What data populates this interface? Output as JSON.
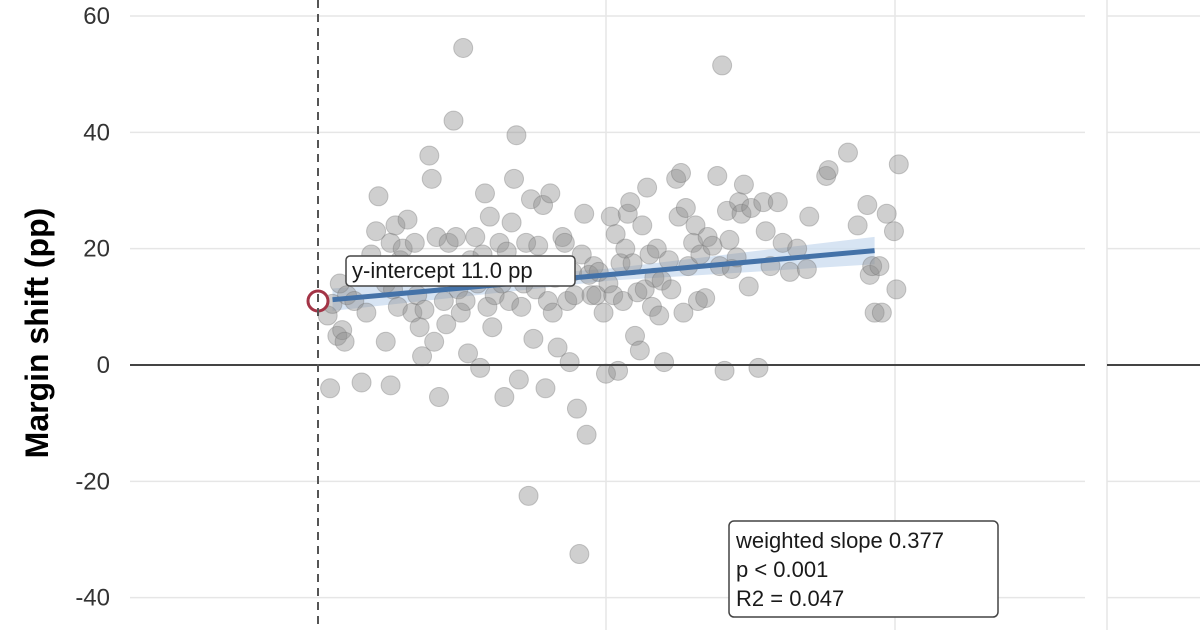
{
  "chart_data": {
    "type": "scatter",
    "ylabel": "Margin shift (pp)",
    "ylim": [
      -44,
      64
    ],
    "xlim": [
      -1,
      25
    ],
    "yticks": [
      60,
      40,
      20,
      0,
      -20,
      -40
    ],
    "grid": true,
    "intercept_annotation": "y-intercept 11.0 pp",
    "stats_annotation": [
      "weighted slope 0.377",
      "p < 0.001",
      "R2 = 0.047"
    ],
    "fit": {
      "intercept": 11.0,
      "slope": 0.377,
      "x_start": 0.6,
      "x_end": 23.0
    },
    "intercept_point": {
      "x": 0,
      "y": 11.0
    },
    "colors": {
      "points": "#8c8c8c",
      "fit_line": "#4472a8",
      "fit_band": "#c9dbef",
      "intercept_marker": "#a33446",
      "zero_line": "#444444",
      "grid": "#e6e6e6"
    },
    "points": [
      [
        0.4,
        8.5
      ],
      [
        0.6,
        10.5
      ],
      [
        0.8,
        5
      ],
      [
        0.9,
        14
      ],
      [
        1.0,
        6
      ],
      [
        1.1,
        4
      ],
      [
        1.2,
        12
      ],
      [
        1.5,
        11
      ],
      [
        1.8,
        -3
      ],
      [
        0.5,
        -4
      ],
      [
        2.0,
        9
      ],
      [
        2.2,
        19
      ],
      [
        2.4,
        23
      ],
      [
        2.5,
        29
      ],
      [
        2.6,
        17
      ],
      [
        2.8,
        14
      ],
      [
        2.8,
        4
      ],
      [
        3.0,
        21
      ],
      [
        3.0,
        -3.5
      ],
      [
        3.1,
        13
      ],
      [
        3.2,
        24
      ],
      [
        3.3,
        10
      ],
      [
        3.4,
        18
      ],
      [
        3.5,
        20
      ],
      [
        3.7,
        25
      ],
      [
        3.8,
        16
      ],
      [
        3.9,
        9
      ],
      [
        4.0,
        21
      ],
      [
        4.1,
        12
      ],
      [
        4.2,
        6.5
      ],
      [
        4.3,
        1.5
      ],
      [
        4.4,
        9.5
      ],
      [
        4.5,
        16
      ],
      [
        4.6,
        36
      ],
      [
        4.7,
        32
      ],
      [
        4.8,
        4
      ],
      [
        4.9,
        22
      ],
      [
        5.0,
        -5.5
      ],
      [
        5.1,
        15
      ],
      [
        5.2,
        11
      ],
      [
        5.3,
        7
      ],
      [
        5.4,
        21
      ],
      [
        5.5,
        17
      ],
      [
        5.6,
        42
      ],
      [
        5.7,
        22
      ],
      [
        5.8,
        13
      ],
      [
        5.9,
        9
      ],
      [
        6.0,
        54.5
      ],
      [
        6.1,
        11
      ],
      [
        6.2,
        2
      ],
      [
        6.3,
        18
      ],
      [
        6.4,
        16
      ],
      [
        6.5,
        22
      ],
      [
        6.6,
        14
      ],
      [
        6.7,
        -0.5
      ],
      [
        6.8,
        19
      ],
      [
        6.9,
        29.5
      ],
      [
        7.0,
        10
      ],
      [
        7.1,
        25.5
      ],
      [
        7.2,
        6.5
      ],
      [
        7.3,
        12
      ],
      [
        7.4,
        17
      ],
      [
        7.5,
        21
      ],
      [
        7.6,
        14
      ],
      [
        7.7,
        -5.5
      ],
      [
        7.8,
        19.5
      ],
      [
        7.9,
        11
      ],
      [
        8.0,
        24.5
      ],
      [
        8.1,
        32
      ],
      [
        8.2,
        39.5
      ],
      [
        8.3,
        -2.5
      ],
      [
        8.4,
        10
      ],
      [
        8.5,
        14
      ],
      [
        8.6,
        21
      ],
      [
        8.7,
        -22.5
      ],
      [
        8.8,
        28.5
      ],
      [
        8.9,
        4.5
      ],
      [
        9.0,
        13
      ],
      [
        9.1,
        20.5
      ],
      [
        9.2,
        17
      ],
      [
        9.3,
        27.5
      ],
      [
        9.4,
        -4
      ],
      [
        9.5,
        11
      ],
      [
        9.6,
        29.5
      ],
      [
        9.7,
        9
      ],
      [
        9.8,
        15
      ],
      [
        9.9,
        3
      ],
      [
        10.0,
        17
      ],
      [
        10.1,
        22
      ],
      [
        10.2,
        21
      ],
      [
        10.3,
        11
      ],
      [
        10.4,
        0.5
      ],
      [
        10.5,
        16
      ],
      [
        10.6,
        12
      ],
      [
        10.7,
        -7.5
      ],
      [
        10.8,
        -32.5
      ],
      [
        10.9,
        19
      ],
      [
        11.0,
        26
      ],
      [
        11.1,
        -12
      ],
      [
        11.2,
        15.5
      ],
      [
        11.3,
        12
      ],
      [
        11.4,
        17
      ],
      [
        11.5,
        12
      ],
      [
        11.6,
        16
      ],
      [
        11.8,
        9
      ],
      [
        11.9,
        -1.5
      ],
      [
        12.0,
        14
      ],
      [
        12.1,
        25.5
      ],
      [
        12.2,
        12
      ],
      [
        12.3,
        22.5
      ],
      [
        12.4,
        -1
      ],
      [
        12.5,
        17.5
      ],
      [
        12.6,
        11
      ],
      [
        12.7,
        20
      ],
      [
        12.8,
        26
      ],
      [
        12.9,
        28
      ],
      [
        13.0,
        17.5
      ],
      [
        13.1,
        5
      ],
      [
        13.2,
        12.5
      ],
      [
        13.3,
        2.5
      ],
      [
        13.4,
        24
      ],
      [
        13.5,
        13
      ],
      [
        13.6,
        30.5
      ],
      [
        13.7,
        19
      ],
      [
        13.8,
        10
      ],
      [
        13.9,
        15
      ],
      [
        14.0,
        20
      ],
      [
        14.1,
        8.5
      ],
      [
        14.2,
        14.5
      ],
      [
        14.3,
        0.5
      ],
      [
        14.5,
        18
      ],
      [
        14.6,
        13
      ],
      [
        14.8,
        32
      ],
      [
        14.9,
        25.5
      ],
      [
        15.0,
        33
      ],
      [
        15.1,
        9
      ],
      [
        15.2,
        27
      ],
      [
        15.3,
        17
      ],
      [
        15.5,
        21
      ],
      [
        15.6,
        24
      ],
      [
        15.7,
        11
      ],
      [
        15.8,
        19
      ],
      [
        16.0,
        11.5
      ],
      [
        16.1,
        22
      ],
      [
        16.3,
        20.5
      ],
      [
        16.5,
        32.5
      ],
      [
        16.6,
        17
      ],
      [
        16.7,
        51.5
      ],
      [
        16.8,
        -1
      ],
      [
        16.9,
        26.5
      ],
      [
        17.0,
        21.5
      ],
      [
        17.1,
        16.5
      ],
      [
        17.3,
        18.5
      ],
      [
        17.4,
        28
      ],
      [
        17.5,
        26
      ],
      [
        17.6,
        31
      ],
      [
        17.8,
        13.5
      ],
      [
        17.9,
        27
      ],
      [
        18.2,
        -0.5
      ],
      [
        18.4,
        28
      ],
      [
        18.5,
        23
      ],
      [
        18.7,
        17
      ],
      [
        19.0,
        28
      ],
      [
        19.2,
        21
      ],
      [
        19.5,
        16
      ],
      [
        19.8,
        20
      ],
      [
        20.2,
        16.5
      ],
      [
        20.3,
        25.5
      ],
      [
        21.0,
        32.5
      ],
      [
        21.1,
        33.5
      ],
      [
        21.9,
        36.5
      ],
      [
        22.3,
        24
      ],
      [
        22.7,
        27.5
      ],
      [
        22.8,
        15.5
      ],
      [
        22.9,
        17
      ],
      [
        23.0,
        9
      ],
      [
        23.2,
        17
      ],
      [
        23.3,
        9
      ],
      [
        23.5,
        26
      ],
      [
        23.8,
        23
      ],
      [
        24.0,
        34.5
      ],
      [
        23.9,
        13
      ]
    ]
  }
}
